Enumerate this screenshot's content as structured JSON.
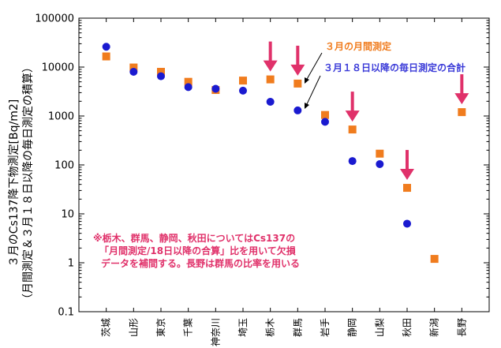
{
  "chart_data": {
    "type": "scatter",
    "ylabel": "３月のCs137降下物測定[Bq/m2]",
    "ylabel_sub": "（月間測定＆３月１８日以降の毎日測定の積算）",
    "y_scale": "log",
    "ylim": [
      0.1,
      100000
    ],
    "y_ticks": [
      "0.1",
      "1",
      "10",
      "100",
      "1000",
      "10000",
      "100000"
    ],
    "categories": [
      "茨城",
      "山形",
      "東京",
      "千葉",
      "神奈川",
      "埼玉",
      "栃木",
      "群馬",
      "岩手",
      "静岡",
      "山梨",
      "秋田",
      "新潟",
      "長野"
    ],
    "series": [
      {
        "name": "３月の月間測定",
        "color": "#f07c1e",
        "marker": "square",
        "values": [
          16500,
          9800,
          8000,
          5000,
          3400,
          5300,
          5600,
          4600,
          1050,
          530,
          170,
          34,
          1.2,
          1200
        ]
      },
      {
        "name": "３月１８日以降の毎日測定の合計",
        "color": "#1a1ad0",
        "marker": "circle",
        "values": [
          26000,
          8000,
          6500,
          3900,
          3600,
          3300,
          1950,
          1300,
          760,
          120,
          104,
          6.3,
          null,
          null
        ]
      }
    ],
    "arrows_at": [
      "栃木",
      "群馬",
      "静岡",
      "秋田",
      "長野"
    ],
    "arrow_color": "#e0316a",
    "annotations": {
      "legend_orange": "３月の月間測定",
      "legend_blue": "３月１８日以降の毎日測定の合計",
      "note_lines": [
        "※栃木、群馬、静岡、秋田についてはCs137の",
        "「月間測定/18日以降の合算」比を用いて欠損",
        "データを補間する。長野は群馬の比率を用いる"
      ]
    }
  }
}
